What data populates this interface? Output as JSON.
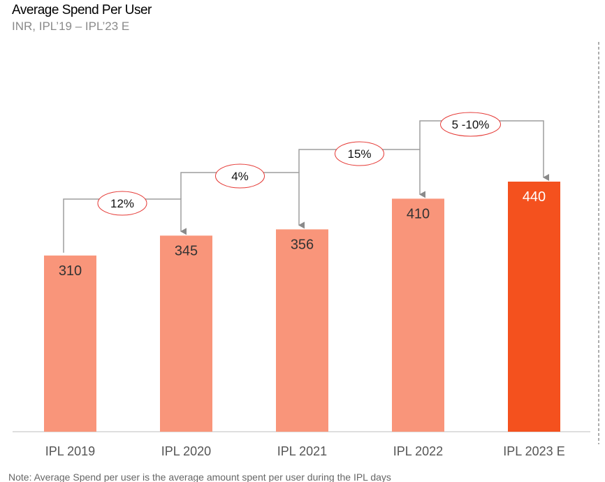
{
  "chart_data": {
    "type": "bar",
    "title": "Average Spend Per User",
    "subtitle": "INR, IPL’19 – IPL’23 E",
    "categories": [
      "IPL 2019",
      "IPL 2020",
      "IPL 2021",
      "IPL 2022",
      "IPL 2023 E"
    ],
    "values": [
      310,
      345,
      356,
      410,
      440
    ],
    "growth_labels": [
      "12%",
      "4%",
      "15%",
      "5 -10%"
    ],
    "xlabel": "",
    "ylabel": "",
    "ylim": [
      0,
      760
    ],
    "grid": false,
    "colors": {
      "actual": "#f9957a",
      "estimate": "#f4511e",
      "ellipse": "#e53935",
      "connector": "#9e9e9e"
    },
    "note": "Note: Average Spend per user is the average amount spent per user during the IPL days"
  }
}
